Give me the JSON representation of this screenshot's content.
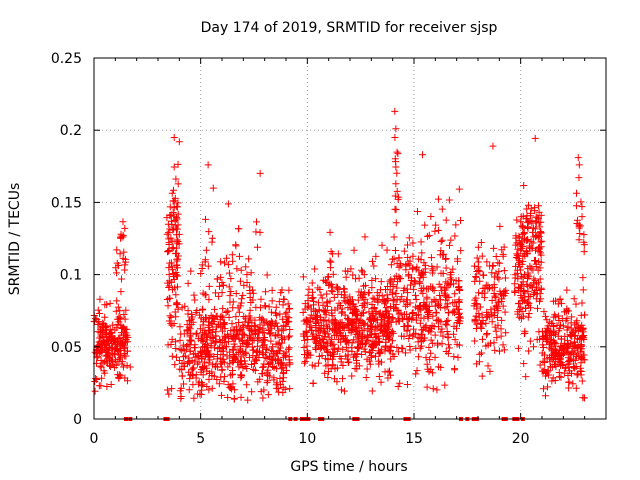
{
  "chart_data": {
    "type": "scatter",
    "title": "Day 174 of 2019, SRMTID for receiver sjsp",
    "xlabel": "GPS time / hours",
    "ylabel": "SRMTID / TECUs",
    "xlim": [
      0,
      24
    ],
    "ylim": [
      0,
      0.25
    ],
    "x_ticks": [
      0,
      5,
      10,
      15,
      20
    ],
    "x_tick_labels": [
      "0",
      "5",
      "10",
      "15",
      "20"
    ],
    "y_ticks": [
      0,
      0.05,
      0.1,
      0.15,
      0.2,
      0.25
    ],
    "y_tick_labels": [
      "0",
      "0.05",
      "0.1",
      "0.15",
      "0.2",
      "0.25"
    ],
    "grid": true,
    "marker": "+",
    "series_color": "#ff0000",
    "zero_markers_x": [
      1.5,
      1.7,
      3.35,
      3.45,
      9.2,
      9.45,
      9.75,
      9.85,
      9.95,
      10.05,
      10.6,
      10.7,
      12.2,
      12.35,
      14.6,
      14.75,
      17.2,
      17.5,
      17.8,
      17.95,
      19.2,
      19.3,
      19.7,
      19.85,
      20.1
    ],
    "clusters": [
      {
        "x0": 0.0,
        "x1": 1.6,
        "base": 0.05,
        "spread": 0.012,
        "n": 220,
        "seed": 1
      },
      {
        "x0": 1.0,
        "x1": 1.5,
        "base": 0.11,
        "spread": 0.02,
        "n": 25,
        "seed": 2
      },
      {
        "x0": 3.4,
        "x1": 4.0,
        "base": 0.1,
        "spread": 0.035,
        "n": 90,
        "seed": 3
      },
      {
        "x0": 3.6,
        "x1": 4.0,
        "base": 0.145,
        "spread": 0.012,
        "n": 25,
        "seed": 4
      },
      {
        "x0": 4.0,
        "x1": 9.2,
        "base": 0.05,
        "spread": 0.018,
        "n": 600,
        "seed": 5
      },
      {
        "x0": 5.0,
        "x1": 7.8,
        "base": 0.1,
        "spread": 0.02,
        "n": 70,
        "seed": 6
      },
      {
        "x0": 9.8,
        "x1": 14.0,
        "base": 0.06,
        "spread": 0.015,
        "n": 520,
        "seed": 7
      },
      {
        "x0": 10.7,
        "x1": 14.0,
        "base": 0.09,
        "spread": 0.015,
        "n": 80,
        "seed": 8
      },
      {
        "x0": 14.0,
        "x1": 17.2,
        "base": 0.08,
        "spread": 0.025,
        "n": 360,
        "seed": 9
      },
      {
        "x0": 14.1,
        "x1": 14.3,
        "base": 0.17,
        "spread": 0.015,
        "n": 14,
        "seed": 10
      },
      {
        "x0": 17.8,
        "x1": 19.3,
        "base": 0.08,
        "spread": 0.022,
        "n": 140,
        "seed": 11
      },
      {
        "x0": 19.7,
        "x1": 21.0,
        "base": 0.1,
        "spread": 0.025,
        "n": 180,
        "seed": 12
      },
      {
        "x0": 20.0,
        "x1": 21.0,
        "base": 0.13,
        "spread": 0.012,
        "n": 35,
        "seed": 13
      },
      {
        "x0": 21.0,
        "x1": 23.0,
        "base": 0.05,
        "spread": 0.015,
        "n": 270,
        "seed": 14
      },
      {
        "x0": 22.5,
        "x1": 23.0,
        "base": 0.14,
        "spread": 0.025,
        "n": 20,
        "seed": 15
      }
    ],
    "outliers": [
      {
        "x": 4.0,
        "y": 0.192
      },
      {
        "x": 5.35,
        "y": 0.176
      },
      {
        "x": 6.3,
        "y": 0.149
      },
      {
        "x": 14.1,
        "y": 0.213
      },
      {
        "x": 14.15,
        "y": 0.201
      },
      {
        "x": 15.4,
        "y": 0.183
      },
      {
        "x": 18.7,
        "y": 0.189
      },
      {
        "x": 22.7,
        "y": 0.181
      },
      {
        "x": 22.75,
        "y": 0.176
      },
      {
        "x": 15.9,
        "y": 0.021
      },
      {
        "x": 0.25,
        "y": 0.023
      },
      {
        "x": 1.7,
        "y": 0.036
      }
    ]
  }
}
